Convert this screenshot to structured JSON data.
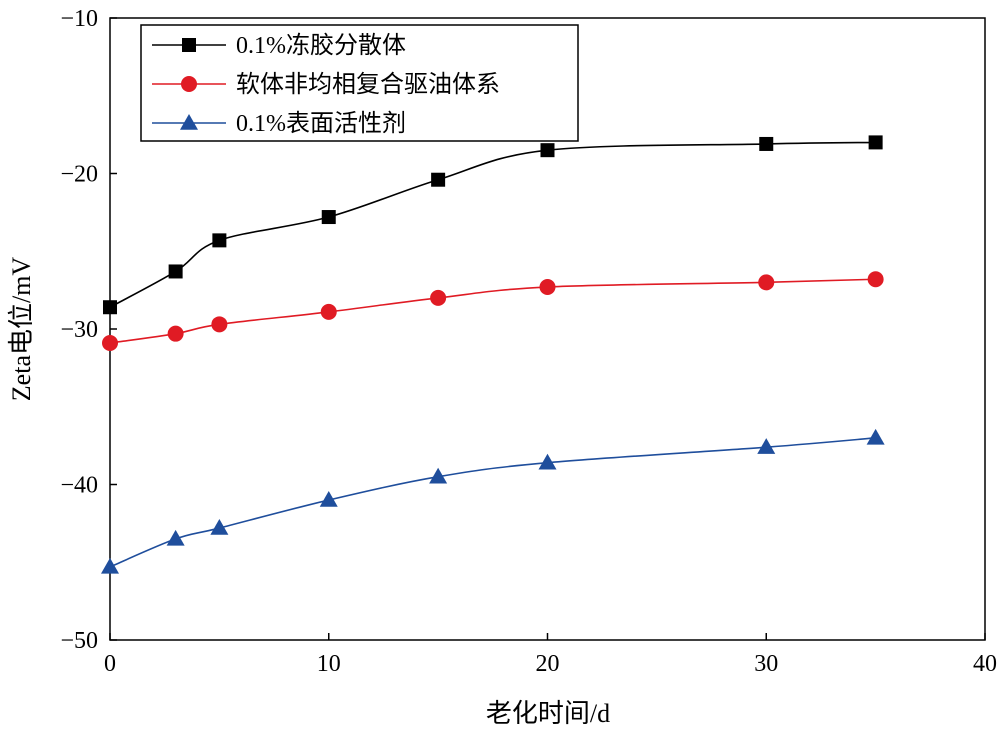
{
  "chart_data": {
    "type": "line",
    "title": "",
    "xlabel": "老化时间/d",
    "ylabel": "Zeta电位/mV",
    "xlim": [
      0,
      40
    ],
    "ylim": [
      -50,
      -10
    ],
    "xticks": [
      0,
      10,
      20,
      30,
      40
    ],
    "yticks": [
      -50,
      -40,
      -30,
      -20,
      -10
    ],
    "xtick_labels": [
      "0",
      "10",
      "20",
      "30",
      "40"
    ],
    "ytick_labels": [
      "−50",
      "−40",
      "−30",
      "−20",
      "−10"
    ],
    "grid": false,
    "legend_position": "top-left",
    "x": [
      0,
      3,
      5,
      10,
      15,
      20,
      30,
      35
    ],
    "series": [
      {
        "name": "0.1%冻胶分散体",
        "marker": "square",
        "color": "#000000",
        "values": [
          -28.6,
          -26.3,
          -24.3,
          -22.8,
          -20.4,
          -18.5,
          -18.1,
          -18.0
        ]
      },
      {
        "name": "软体非均相复合驱油体系",
        "marker": "circle",
        "color": "#e01b24",
        "values": [
          -30.9,
          -30.3,
          -29.7,
          -28.9,
          -28.0,
          -27.3,
          -27.0,
          -26.8
        ]
      },
      {
        "name": "0.1%表面活性剂",
        "marker": "triangle",
        "color": "#1f4e9c",
        "values": [
          -45.3,
          -43.5,
          -42.8,
          -41.0,
          -39.5,
          -38.6,
          -37.6,
          -37.0
        ]
      }
    ]
  }
}
